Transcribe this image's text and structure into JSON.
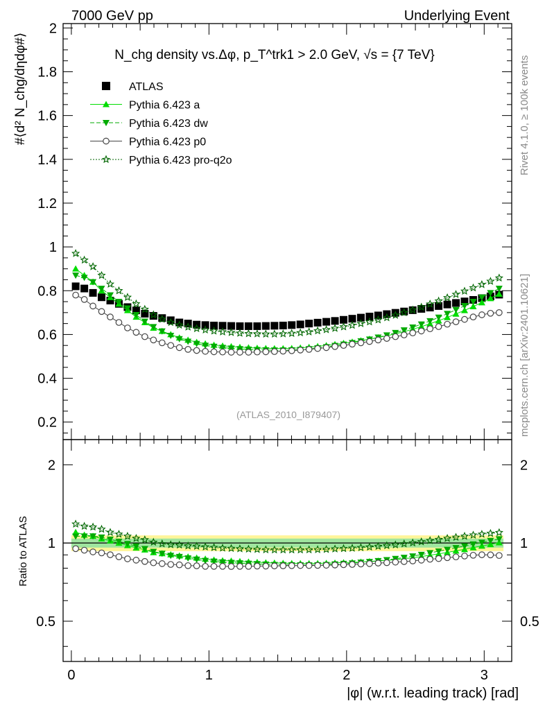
{
  "header": {
    "left": "7000 GeV pp",
    "right": "Underlying Event"
  },
  "side_labels": {
    "rivet": "Rivet 4.1.0, ≥ 100k events",
    "mcplots": "mcplots.cern.ch [arXiv:2401.10621]"
  },
  "chart_data": {
    "type": "line",
    "title": "N_chg density vs.Δφ, p_T^trk1 > 2.0 GeV, √s = {7 TeV}",
    "watermark": "(ATLAS_2010_I879407)",
    "ylabel": "#⟨d² N_chg/dηdφ#⟩",
    "xlabel": "|φ| (w.r.t. leading track) [rad]",
    "ratio_ylabel": "Ratio to ATLAS",
    "xlim": [
      -0.06,
      3.2
    ],
    "ylim": [
      0.12,
      2.02
    ],
    "ratio_ylim": [
      0.35,
      2.5
    ],
    "x_ticks": [
      "0",
      "1",
      "2",
      "3"
    ],
    "y_ticks": [
      "0.2",
      "0.4",
      "0.6",
      "0.8",
      "1",
      "1.2",
      "1.4",
      "1.6",
      "1.8",
      "2"
    ],
    "ratio_ticks": [
      "0.5",
      "1",
      "2"
    ],
    "legend": [
      {
        "name": "ATLAS",
        "color": "#000000",
        "marker": "square",
        "line": "none"
      },
      {
        "name": "Pythia 6.423 a",
        "color": "#00dd00",
        "marker": "triangle-up",
        "line": "solid"
      },
      {
        "name": "Pythia 6.423 dw",
        "color": "#00aa00",
        "marker": "triangle-down",
        "line": "dashed"
      },
      {
        "name": "Pythia 6.423 p0",
        "color": "#444444",
        "marker": "circle-open",
        "line": "solid"
      },
      {
        "name": "Pythia 6.423 pro-q2o",
        "color": "#006600",
        "marker": "star-open",
        "line": "dotted"
      }
    ],
    "x_range": {
      "start": 0.0314,
      "step": 0.0628,
      "count": 50
    },
    "series": [
      {
        "name": "ATLAS",
        "values": [
          0.82,
          0.81,
          0.79,
          0.77,
          0.755,
          0.74,
          0.725,
          0.71,
          0.695,
          0.685,
          0.675,
          0.665,
          0.655,
          0.65,
          0.645,
          0.643,
          0.641,
          0.64,
          0.639,
          0.638,
          0.638,
          0.638,
          0.639,
          0.64,
          0.641,
          0.643,
          0.646,
          0.65,
          0.654,
          0.658,
          0.662,
          0.667,
          0.672,
          0.677,
          0.682,
          0.687,
          0.693,
          0.699,
          0.705,
          0.711,
          0.717,
          0.723,
          0.73,
          0.737,
          0.744,
          0.751,
          0.758,
          0.766,
          0.774,
          0.782
        ]
      },
      {
        "name": "Pythia 6.423 a",
        "values": [
          0.9,
          0.87,
          0.84,
          0.8,
          0.77,
          0.74,
          0.71,
          0.68,
          0.655,
          0.63,
          0.615,
          0.6,
          0.585,
          0.575,
          0.565,
          0.558,
          0.552,
          0.548,
          0.545,
          0.542,
          0.54,
          0.538,
          0.537,
          0.536,
          0.536,
          0.537,
          0.539,
          0.542,
          0.546,
          0.55,
          0.555,
          0.56,
          0.566,
          0.572,
          0.579,
          0.586,
          0.594,
          0.603,
          0.613,
          0.624,
          0.636,
          0.649,
          0.663,
          0.678,
          0.694,
          0.71,
          0.728,
          0.746,
          0.765,
          0.785
        ]
      },
      {
        "name": "Pythia 6.423 dw",
        "values": [
          0.87,
          0.86,
          0.84,
          0.81,
          0.78,
          0.75,
          0.72,
          0.69,
          0.66,
          0.635,
          0.615,
          0.595,
          0.58,
          0.568,
          0.558,
          0.55,
          0.545,
          0.54,
          0.537,
          0.534,
          0.532,
          0.53,
          0.529,
          0.528,
          0.528,
          0.529,
          0.531,
          0.534,
          0.538,
          0.543,
          0.549,
          0.555,
          0.562,
          0.57,
          0.578,
          0.587,
          0.597,
          0.608,
          0.62,
          0.633,
          0.647,
          0.662,
          0.678,
          0.695,
          0.713,
          0.731,
          0.75,
          0.77,
          0.79,
          0.81
        ]
      },
      {
        "name": "Pythia 6.423 p0",
        "values": [
          0.78,
          0.76,
          0.73,
          0.705,
          0.68,
          0.655,
          0.63,
          0.61,
          0.59,
          0.575,
          0.562,
          0.55,
          0.54,
          0.532,
          0.527,
          0.523,
          0.521,
          0.52,
          0.519,
          0.519,
          0.519,
          0.52,
          0.521,
          0.522,
          0.524,
          0.526,
          0.529,
          0.532,
          0.536,
          0.54,
          0.545,
          0.55,
          0.556,
          0.562,
          0.568,
          0.575,
          0.582,
          0.59,
          0.598,
          0.607,
          0.616,
          0.626,
          0.636,
          0.647,
          0.658,
          0.669,
          0.68,
          0.69,
          0.697,
          0.7
        ]
      },
      {
        "name": "Pythia 6.423 pro-q2o",
        "values": [
          0.97,
          0.94,
          0.91,
          0.87,
          0.83,
          0.8,
          0.77,
          0.74,
          0.715,
          0.69,
          0.67,
          0.655,
          0.643,
          0.634,
          0.627,
          0.621,
          0.616,
          0.612,
          0.609,
          0.606,
          0.604,
          0.603,
          0.602,
          0.602,
          0.603,
          0.605,
          0.608,
          0.612,
          0.617,
          0.622,
          0.628,
          0.635,
          0.642,
          0.65,
          0.658,
          0.667,
          0.677,
          0.688,
          0.7,
          0.712,
          0.725,
          0.739,
          0.753,
          0.768,
          0.783,
          0.798,
          0.813,
          0.828,
          0.843,
          0.858
        ]
      }
    ],
    "ratio_series": [
      {
        "name": "Pythia 6.423 a",
        "values": [
          1.1,
          1.074,
          1.063,
          1.039,
          1.02,
          1.0,
          0.979,
          0.958,
          0.942,
          0.92,
          0.911,
          0.902,
          0.893,
          0.885,
          0.876,
          0.868,
          0.861,
          0.856,
          0.853,
          0.85,
          0.846,
          0.843,
          0.84,
          0.838,
          0.836,
          0.835,
          0.834,
          0.834,
          0.835,
          0.836,
          0.838,
          0.841,
          0.842,
          0.845,
          0.849,
          0.853,
          0.857,
          0.863,
          0.87,
          0.877,
          0.887,
          0.897,
          0.908,
          0.92,
          0.933,
          0.945,
          0.96,
          0.974,
          0.988,
          1.004
        ]
      },
      {
        "name": "Pythia 6.423 dw",
        "values": [
          1.061,
          1.062,
          1.063,
          1.052,
          1.033,
          1.014,
          0.993,
          0.972,
          0.95,
          0.927,
          0.911,
          0.895,
          0.886,
          0.874,
          0.865,
          0.855,
          0.85,
          0.844,
          0.84,
          0.837,
          0.834,
          0.831,
          0.828,
          0.825,
          0.824,
          0.823,
          0.822,
          0.822,
          0.823,
          0.825,
          0.829,
          0.833,
          0.836,
          0.842,
          0.847,
          0.854,
          0.861,
          0.87,
          0.879,
          0.89,
          0.902,
          0.916,
          0.93,
          0.943,
          0.958,
          0.973,
          0.989,
          1.005,
          1.021,
          1.036
        ]
      },
      {
        "name": "Pythia 6.423 p0",
        "values": [
          0.951,
          0.938,
          0.924,
          0.916,
          0.901,
          0.885,
          0.869,
          0.859,
          0.849,
          0.839,
          0.833,
          0.827,
          0.824,
          0.818,
          0.817,
          0.813,
          0.813,
          0.813,
          0.812,
          0.813,
          0.813,
          0.815,
          0.815,
          0.816,
          0.817,
          0.818,
          0.819,
          0.819,
          0.82,
          0.821,
          0.823,
          0.825,
          0.827,
          0.83,
          0.833,
          0.837,
          0.84,
          0.844,
          0.848,
          0.853,
          0.859,
          0.866,
          0.871,
          0.878,
          0.884,
          0.891,
          0.897,
          0.901,
          0.9,
          0.895
        ]
      },
      {
        "name": "Pythia 6.423 pro-q2o",
        "values": [
          1.183,
          1.16,
          1.152,
          1.13,
          1.099,
          1.081,
          1.062,
          1.042,
          1.029,
          1.007,
          0.993,
          0.985,
          0.982,
          0.975,
          0.972,
          0.966,
          0.961,
          0.956,
          0.953,
          0.95,
          0.947,
          0.945,
          0.942,
          0.941,
          0.941,
          0.941,
          0.941,
          0.942,
          0.943,
          0.945,
          0.949,
          0.952,
          0.955,
          0.96,
          0.965,
          0.971,
          0.977,
          0.984,
          0.993,
          1.001,
          1.011,
          1.022,
          1.032,
          1.042,
          1.052,
          1.062,
          1.073,
          1.081,
          1.089,
          1.097
        ]
      }
    ],
    "ratio_bands": {
      "inner": [
        0.96,
        1.04
      ],
      "outer": [
        0.93,
        1.07
      ]
    }
  }
}
